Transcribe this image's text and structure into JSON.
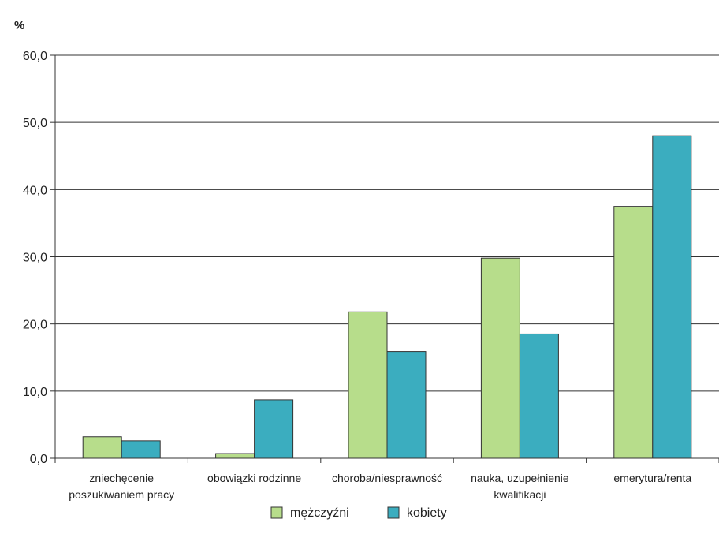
{
  "chart_data": {
    "type": "bar",
    "y_unit": "%",
    "ylim": [
      0,
      60
    ],
    "y_ticks": [
      "0,0",
      "10,0",
      "20,0",
      "30,0",
      "40,0",
      "50,0",
      "60,0"
    ],
    "grid": true,
    "legend_position": "bottom",
    "categories": [
      [
        "zniechęcenie",
        "poszukiwaniem pracy"
      ],
      [
        "obowiązki rodzinne"
      ],
      [
        "choroba/niesprawność"
      ],
      [
        "nauka, uzupełnienie",
        "kwalifikacji"
      ],
      [
        "emerytura/renta"
      ]
    ],
    "series": [
      {
        "name": "mężczyźni",
        "color": "#B7DD8B",
        "values": [
          3.2,
          0.7,
          21.8,
          29.8,
          37.5
        ]
      },
      {
        "name": "kobiety",
        "color": "#3BADBF",
        "values": [
          2.6,
          8.7,
          15.9,
          18.5,
          48.0
        ]
      }
    ]
  }
}
